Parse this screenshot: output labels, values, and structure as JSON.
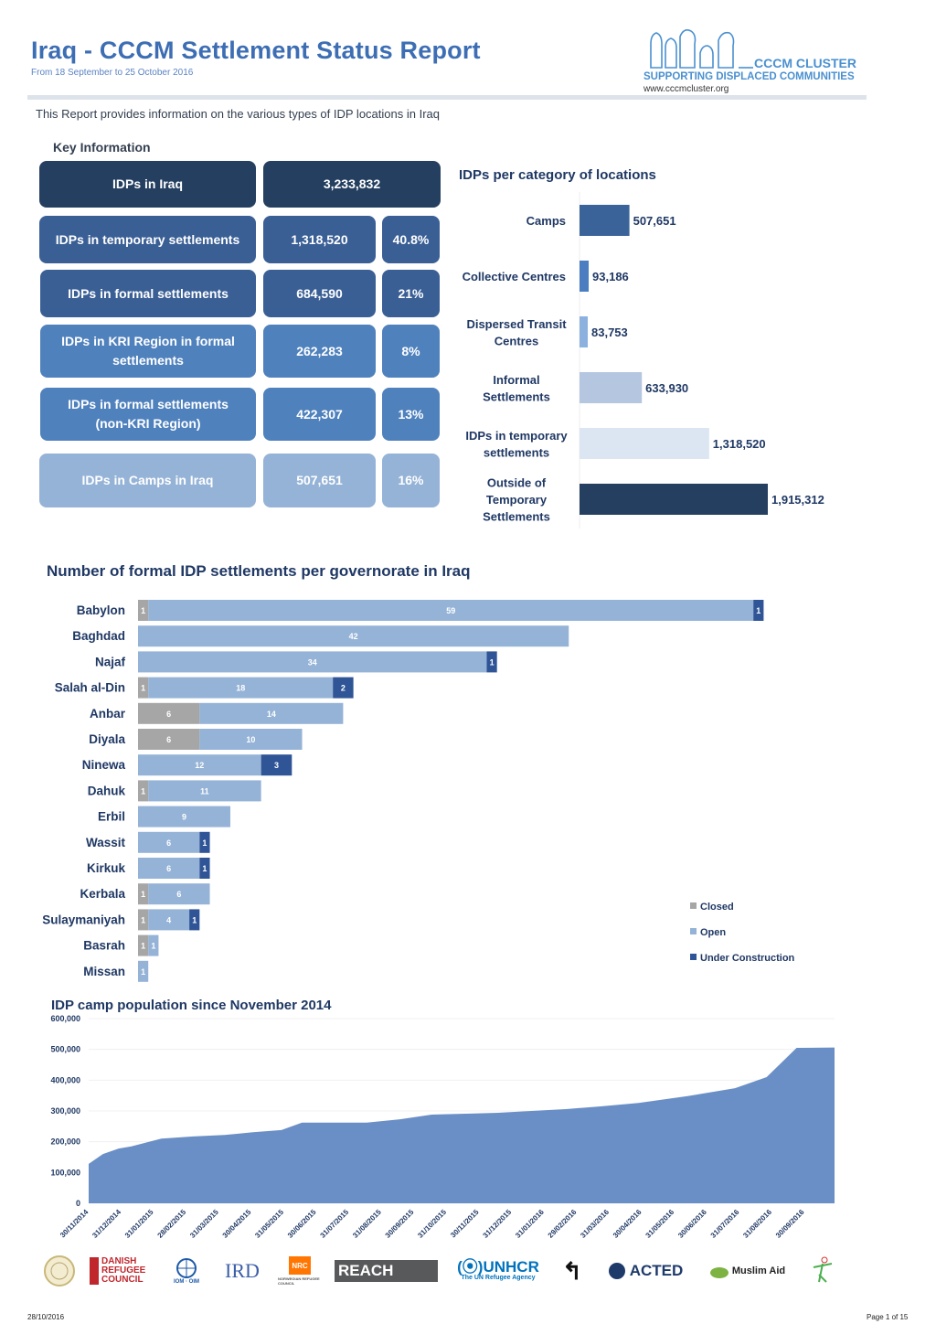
{
  "header": {
    "title": "Iraq -  CCCM Settlement Status Report",
    "subtitle": "From 18 September to 25 October 2016",
    "logo_name": "CCCM CLUSTER",
    "logo_tagline": "SUPPORTING DISPLACED COMMUNITIES",
    "logo_url": "www.cccmcluster.org"
  },
  "intro": "This Report provides information on the various types of IDP locations in Iraq",
  "key_information": {
    "title": "Key Information",
    "rows": [
      {
        "label": "IDPs in Iraq",
        "value": "3,233,832",
        "percent": ""
      },
      {
        "label": "IDPs in temporary settlements",
        "value": "1,318,520",
        "percent": "40.8%"
      },
      {
        "label": "IDPs in formal settlements",
        "value": "684,590",
        "percent": "21%"
      },
      {
        "label": "IDPs in KRI Region in formal settlements",
        "value": "262,283",
        "percent": "8%"
      },
      {
        "label": "IDPs in formal settlements (non-KRI Region)",
        "value": "422,307",
        "percent": "13%"
      },
      {
        "label": "IDPs in Camps in Iraq",
        "value": "507,651",
        "percent": "16%"
      }
    ]
  },
  "chart_data": [
    {
      "type": "bar",
      "orientation": "horizontal",
      "title": "IDPs per category of locations",
      "categories": [
        "Camps",
        "Collective Centres",
        "Dispersed Transit Centres",
        "Informal Settlements",
        "IDPs in temporary settlements",
        "Outside of Temporary Settlements"
      ],
      "values": [
        507651,
        93186,
        83753,
        633930,
        1318520,
        1915312
      ],
      "value_labels": [
        "507,651",
        "93,186",
        "83,753",
        "633,930",
        "1,318,520",
        "1,915,312"
      ],
      "colors": [
        "#3a6499",
        "#4a7ec0",
        "#8db1df",
        "#b4c6e0",
        "#dce6f2",
        "#243f60"
      ],
      "xlim": [
        0,
        1915312
      ],
      "grid": false
    },
    {
      "type": "bar",
      "orientation": "horizontal",
      "stacked": true,
      "title": "Number of formal IDP settlements per governorate in Iraq",
      "categories": [
        "Babylon",
        "Baghdad",
        "Najaf",
        "Salah al-Din",
        "Anbar",
        "Diyala",
        "Ninewa",
        "Dahuk",
        "Erbil",
        "Wassit",
        "Kirkuk",
        "Kerbala",
        "Sulaymaniyah",
        "Basrah",
        "Missan"
      ],
      "series": [
        {
          "name": "Closed",
          "color": "#a6a6a6",
          "values": [
            1,
            0,
            0,
            1,
            6,
            6,
            0,
            1,
            0,
            0,
            0,
            1,
            1,
            1,
            0
          ]
        },
        {
          "name": "Open",
          "color": "#95b3d7",
          "values": [
            59,
            42,
            34,
            18,
            14,
            10,
            12,
            11,
            9,
            6,
            6,
            6,
            4,
            1,
            1
          ]
        },
        {
          "name": "Under Construction",
          "color": "#2f5597",
          "values": [
            1,
            0,
            1,
            2,
            0,
            0,
            3,
            0,
            0,
            1,
            1,
            0,
            1,
            0,
            0
          ]
        }
      ],
      "legend": "right",
      "grid": false
    },
    {
      "type": "area",
      "title": "IDP camp population since November 2014",
      "color": "#6a8fc6",
      "x_tick_labels": [
        "30/11/2014",
        "31/12/2014",
        "31/01/2015",
        "28/02/2015",
        "31/03/2015",
        "30/04/2015",
        "31/05/2015",
        "30/06/2015",
        "31/07/2015",
        "31/08/2015",
        "30/09/2015",
        "31/10/2015",
        "30/11/2015",
        "31/12/2015",
        "31/01/2016",
        "29/02/2016",
        "31/03/2016",
        "30/04/2016",
        "31/05/2016",
        "30/06/2016",
        "31/07/2016",
        "31/08/2016",
        "30/09/2016"
      ],
      "y_tick_labels": [
        "0",
        "100,000",
        "200,000",
        "300,000",
        "400,000",
        "500,000",
        "600,000"
      ],
      "ylim": [
        0,
        600000
      ],
      "x_months": [
        0,
        0.45,
        0.95,
        1.35,
        2.3,
        3.3,
        4.3,
        5.2,
        6.1,
        6.75,
        7.8,
        8.8,
        9.85,
        10.85,
        11.95,
        12.95,
        14.0,
        15.1,
        16.2,
        17.4,
        18.95,
        20.45,
        21.45,
        22.4,
        23.6
      ],
      "y_values": [
        128000,
        160000,
        178000,
        185000,
        210000,
        217000,
        222000,
        231000,
        238000,
        262000,
        262000,
        262000,
        273000,
        288000,
        291000,
        294000,
        300000,
        306000,
        315000,
        326000,
        348000,
        374000,
        410000,
        505000,
        506000
      ],
      "grid": true
    }
  ],
  "partners": [
    "Ministry of Migration",
    "DRC Danish Refugee Council",
    "IOM · OIM",
    "IRD",
    "NRC Norwegian Refugee Council",
    "REACH",
    "UNHCR The UN Refugee Agency",
    "Partner",
    "ACTED",
    "Muslim Aid",
    "YAO"
  ],
  "footer": {
    "date": "28/10/2016",
    "page": "Page 1 of 15"
  },
  "legend_labels": {
    "closed": "Closed",
    "open": "Open",
    "under_construction": "Under Construction"
  }
}
